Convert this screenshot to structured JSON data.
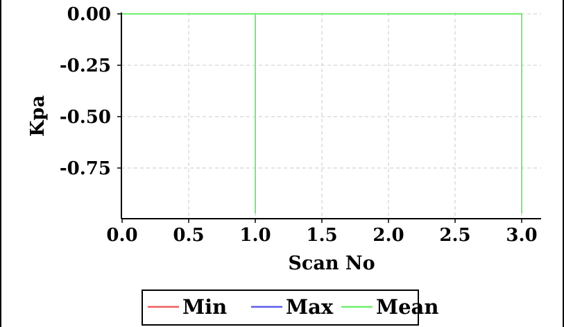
{
  "chart_data": {
    "type": "line",
    "xlabel": "Scan No",
    "ylabel": "Kpa",
    "xlim": [
      0,
      3.15
    ],
    "ylim": [
      -0.97,
      0.01
    ],
    "x_ticks": [
      "0.0",
      "0.5",
      "1.0",
      "1.5",
      "2.0",
      "2.5",
      "3.0"
    ],
    "y_ticks": [
      "0.00",
      "-0.25",
      "-0.50",
      "-0.75"
    ],
    "grid": true,
    "legend_position": "bottom",
    "series": [
      {
        "name": "Min",
        "color": "#f25c5c",
        "points": [
          [
            0,
            0
          ],
          [
            1,
            0
          ],
          [
            3,
            0
          ]
        ]
      },
      {
        "name": "Max",
        "color": "#5a5aee",
        "points": [
          [
            0,
            0
          ],
          [
            1,
            0
          ],
          [
            3,
            0
          ]
        ]
      },
      {
        "name": "Mean",
        "color": "#6ef06e",
        "points": [
          [
            0,
            0
          ],
          [
            1,
            0
          ],
          [
            1,
            -0.97
          ],
          [
            1,
            0
          ],
          [
            3,
            0
          ],
          [
            3,
            -0.97
          ]
        ]
      }
    ]
  }
}
